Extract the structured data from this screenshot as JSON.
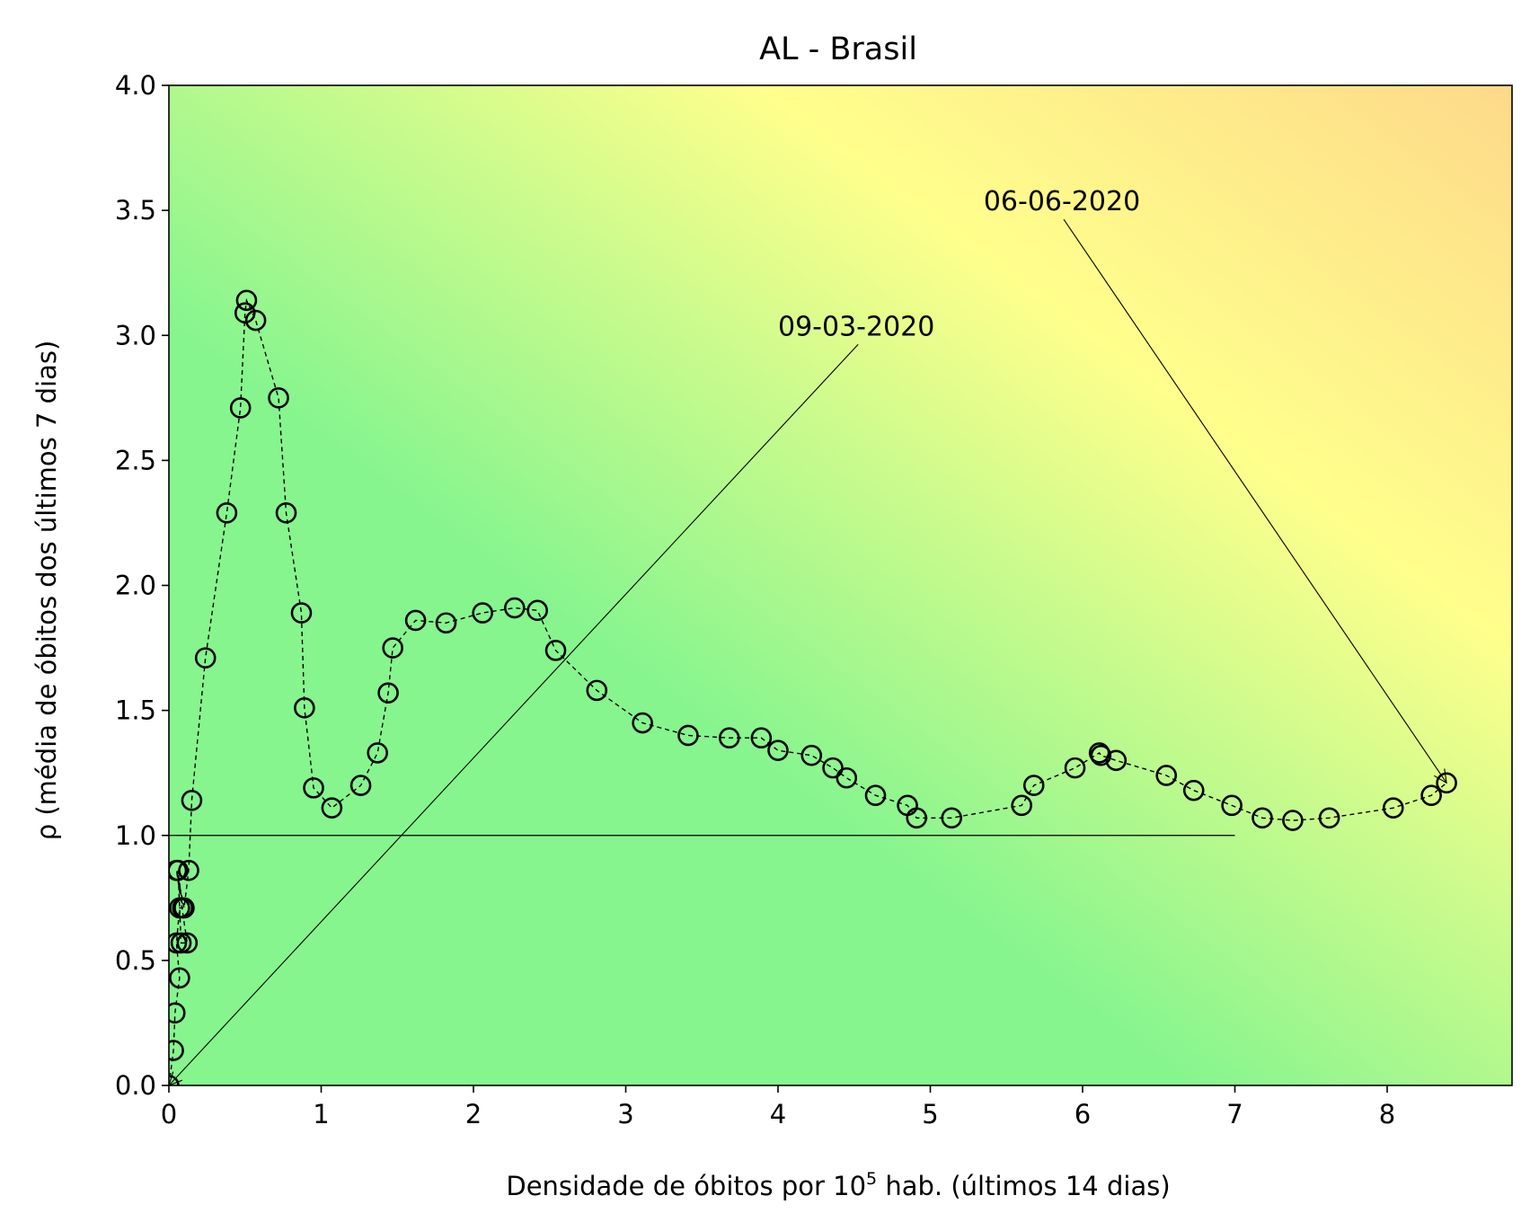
{
  "chart_data": {
    "type": "scatter",
    "title": "AL - Brasil",
    "xlabel": "Densidade de óbitos por 10",
    "xlabel_sup": "5",
    "xlabel_suffix": " hab. (últimos 14 dias)",
    "ylabel": "ρ (média de óbitos dos últimos 7 dias)",
    "xlim": [
      0,
      8.82
    ],
    "ylim": [
      0,
      4.0
    ],
    "xticks": [
      0,
      1,
      2,
      3,
      4,
      5,
      6,
      7,
      8
    ],
    "xtick_labels": [
      "0",
      "1",
      "2",
      "3",
      "4",
      "5",
      "6",
      "7",
      "8"
    ],
    "yticks": [
      0,
      0.5,
      1.0,
      1.5,
      2.0,
      2.5,
      3.0,
      3.5,
      4.0
    ],
    "ytick_labels": [
      "0.0",
      "0.5",
      "1.0",
      "1.5",
      "2.0",
      "2.5",
      "3.0",
      "3.5",
      "4.0"
    ],
    "grid": false,
    "background": "gradient green-yellow-orange",
    "colors": {
      "green": "#86f58e",
      "yellow": "#ffff8c",
      "orange": "#fdd98a",
      "marker": "#000000"
    },
    "reference_line": {
      "y": 1.0,
      "x_start": 0,
      "x_end": 7.0
    },
    "series": [
      {
        "x": [
          0.0,
          0.03,
          0.04,
          0.07,
          0.05,
          0.07,
          0.09,
          0.06,
          0.08,
          0.12,
          0.05,
          0.1,
          0.13,
          0.15,
          0.24,
          0.38,
          0.47,
          0.5,
          0.51,
          0.57,
          0.72,
          0.77,
          0.87,
          0.89,
          0.95,
          1.07,
          1.26,
          1.37,
          1.44,
          1.47,
          1.62,
          1.82,
          2.06,
          2.27,
          2.42,
          2.54,
          2.81,
          3.11,
          3.41,
          3.68,
          3.89,
          4.0,
          4.22,
          4.36,
          4.45,
          4.64,
          4.85,
          4.91,
          5.14,
          5.6,
          5.68,
          5.95,
          6.11,
          6.12,
          6.22,
          6.55,
          6.73,
          6.98,
          7.18,
          7.38,
          7.62,
          8.04,
          8.29,
          8.39
        ],
        "y": [
          0.0,
          0.14,
          0.29,
          0.43,
          0.57,
          0.71,
          0.71,
          0.86,
          0.57,
          0.57,
          0.86,
          0.71,
          0.86,
          1.14,
          1.71,
          2.29,
          2.71,
          3.09,
          3.14,
          3.06,
          2.75,
          2.29,
          1.89,
          1.51,
          1.19,
          1.11,
          1.2,
          1.33,
          1.57,
          1.75,
          1.86,
          1.85,
          1.89,
          1.91,
          1.9,
          1.74,
          1.58,
          1.45,
          1.4,
          1.39,
          1.39,
          1.34,
          1.32,
          1.27,
          1.23,
          1.16,
          1.12,
          1.07,
          1.07,
          1.12,
          1.2,
          1.27,
          1.33,
          1.32,
          1.3,
          1.24,
          1.18,
          1.12,
          1.07,
          1.06,
          1.07,
          1.11,
          1.16,
          1.21
        ]
      }
    ],
    "annotations": [
      {
        "text": "09-03-2020",
        "point": [
          0.0,
          0.0
        ],
        "text_pos": [
          4.0,
          3.0
        ]
      },
      {
        "text": "06-06-2020",
        "point": [
          8.39,
          1.21
        ],
        "text_pos": [
          5.35,
          3.5
        ]
      }
    ]
  }
}
